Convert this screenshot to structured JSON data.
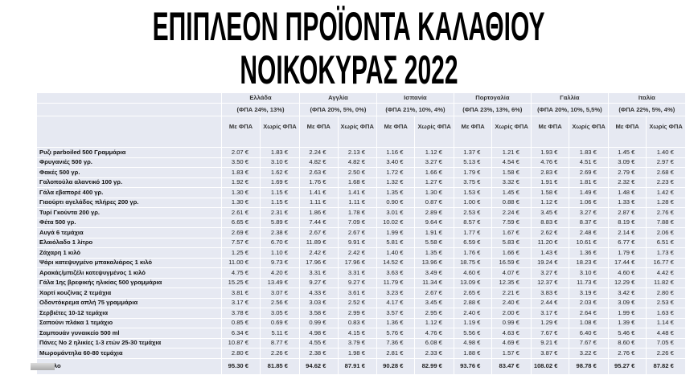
{
  "title": {
    "line1": "ΕΠΙΠΛΕΟΝ ΠΡΟΪΟΝΤΑ ΚΑΛΑΘΙΟΥ",
    "line2": "ΝΟΙΚΟΚΥΡΑΣ 2022"
  },
  "countries": [
    {
      "name": "Ελλάδα",
      "vat": "(ΦΠΑ 24%, 13%)"
    },
    {
      "name": "Αγγλία",
      "vat": "(ΦΠΑ 20%, 5%, 0%)"
    },
    {
      "name": "Ισπανία",
      "vat": "(ΦΠΑ 21%, 10%, 4%)"
    },
    {
      "name": "Πορτογαλία",
      "vat": "(ΦΠΑ 23%, 13%, 6%)"
    },
    {
      "name": "Γαλλία",
      "vat": "(ΦΠΑ 20%, 10%, 5,5%)"
    },
    {
      "name": "Ιταλία",
      "vat": "(ΦΠΑ 22%, 5%, 4%)"
    }
  ],
  "subheaders": {
    "with_vat": "Με ΦΠΑ",
    "without_vat": "Χωρίς ΦΠΑ"
  },
  "rows": [
    {
      "product": "Ρυζι parboiled 500 Γραμμάρια",
      "values": [
        "2.07 €",
        "1.83 €",
        "2.24 €",
        "2.13 €",
        "1.16 €",
        "1.12 €",
        "1.37 €",
        "1.21 €",
        "1.93 €",
        "1.83 €",
        "1.45 €",
        "1.40 €"
      ]
    },
    {
      "product": "Φρυγανιές 500 γρ.",
      "values": [
        "3.50 €",
        "3.10 €",
        "4.82 €",
        "4.82 €",
        "3.40 €",
        "3.27 €",
        "5.13 €",
        "4.54 €",
        "4.76 €",
        "4.51 €",
        "3.09 €",
        "2.97 €"
      ]
    },
    {
      "product": "Φακές 500 γρ.",
      "values": [
        "1.83 €",
        "1.62 €",
        "2.63 €",
        "2.50 €",
        "1.72 €",
        "1.66 €",
        "1.79 €",
        "1.58 €",
        "2.83 €",
        "2.69 €",
        "2.79 €",
        "2.68 €"
      ]
    },
    {
      "product": "Γαλοπούλα αλαντικό 100 γρ.",
      "values": [
        "1.92 €",
        "1.69 €",
        "1.76 €",
        "1.68 €",
        "1.32 €",
        "1.27 €",
        "3.75 €",
        "3.32 €",
        "1.91 €",
        "1.81 €",
        "2.32 €",
        "2.23 €"
      ]
    },
    {
      "product": "Γάλα εβαπορέ 400 γρ.",
      "values": [
        "1.30 €",
        "1.15 €",
        "1.41 €",
        "1.41 €",
        "1.35 €",
        "1.30 €",
        "1.53 €",
        "1.45 €",
        "1.58 €",
        "1.49 €",
        "1.48 €",
        "1.42 €"
      ]
    },
    {
      "product": "Γιαούρτι αγελάδος πλήρες 200 γρ.",
      "values": [
        "1.30 €",
        "1.15 €",
        "1.11 €",
        "1.11 €",
        "0.90 €",
        "0.87 €",
        "1.00 €",
        "0.88 €",
        "1.12 €",
        "1.06 €",
        "1.33 €",
        "1.28 €"
      ]
    },
    {
      "product": "Τυρί Γκούντα 200 γρ.",
      "values": [
        "2.61 €",
        "2.31 €",
        "1.86 €",
        "1.78 €",
        "3.01 €",
        "2.89 €",
        "2.53 €",
        "2.24 €",
        "3.45 €",
        "3.27 €",
        "2.87 €",
        "2.76 €"
      ]
    },
    {
      "product": "Φέτα 500 γρ.",
      "values": [
        "6.65 €",
        "5.89 €",
        "7.44 €",
        "7.09 €",
        "10.02 €",
        "9.64 €",
        "8.57 €",
        "7.59 €",
        "8.83 €",
        "8.37 €",
        "8.19 €",
        "7.88 €"
      ]
    },
    {
      "product": "Αυγά 6 τεμάχια",
      "values": [
        "2.69 €",
        "2.38 €",
        "2.67 €",
        "2.67 €",
        "1.99 €",
        "1.91 €",
        "1.77 €",
        "1.67 €",
        "2.62 €",
        "2.48 €",
        "2.14 €",
        "2.06 €"
      ]
    },
    {
      "product": "Ελαιόλαδο 1 λίτρο",
      "values": [
        "7.57 €",
        "6.70 €",
        "11.89 €",
        "9.91 €",
        "5.81 €",
        "5.58 €",
        "6.59 €",
        "5.83 €",
        "11.20 €",
        "10.61 €",
        "6.77 €",
        "6.51 €"
      ]
    },
    {
      "product": "Ζάχαρη 1 κιλό",
      "values": [
        "1.25 €",
        "1.10 €",
        "2.42 €",
        "2.42 €",
        "1.40 €",
        "1.35 €",
        "1.76 €",
        "1.66 €",
        "1.43 €",
        "1.36 €",
        "1.79 €",
        "1.73 €"
      ]
    },
    {
      "product": "Ψάρι κατεψυγμένο μπακαλιάρος 1 κιλό",
      "values": [
        "11.00 €",
        "9.73 €",
        "17.96 €",
        "17.96 €",
        "14.52 €",
        "13.96 €",
        "18.75 €",
        "16.59 €",
        "19.24 €",
        "18.23 €",
        "17.44 €",
        "16.77 €"
      ]
    },
    {
      "product": "Αρακάς/μπιζέλι κατεψυγμένος 1 κιλό",
      "values": [
        "4.75 €",
        "4.20 €",
        "3.31 €",
        "3.31 €",
        "3.63 €",
        "3.49 €",
        "4.60 €",
        "4.07 €",
        "3.27 €",
        "3.10 €",
        "4.60 €",
        "4.42 €"
      ]
    },
    {
      "product": "Γάλα 1ης βρεφικής ηλικίας 500 γραμμάρια",
      "values": [
        "15.25 €",
        "13.49 €",
        "9.27 €",
        "9.27 €",
        "11.79 €",
        "11.34 €",
        "13.09 €",
        "12.35 €",
        "12.37 €",
        "11.73 €",
        "12.29 €",
        "11.82 €"
      ]
    },
    {
      "product": "Χαρτί κουζίνας 2 τεμάχια",
      "values": [
        "3.81 €",
        "3.07 €",
        "4.33 €",
        "3.61 €",
        "3.23 €",
        "2.67 €",
        "2.65 €",
        "2.21 €",
        "3.83 €",
        "3.19 €",
        "3.42 €",
        "2.80 €"
      ]
    },
    {
      "product": "Οδοντόκρεμα απλή 75 γραμμάρια",
      "values": [
        "3.17 €",
        "2.56 €",
        "3.03 €",
        "2.52 €",
        "4.17 €",
        "3.45 €",
        "2.88 €",
        "2.40 €",
        "2.44 €",
        "2.03 €",
        "3.09 €",
        "2.53 €"
      ]
    },
    {
      "product": "Σερβιέτες 10-12 τεμάχια",
      "values": [
        "3.78 €",
        "3.05 €",
        "3.58 €",
        "2.99 €",
        "3.57 €",
        "2.95 €",
        "2.40 €",
        "2.00 €",
        "3.17 €",
        "2.64 €",
        "1.99 €",
        "1.63 €"
      ]
    },
    {
      "product": "Σαπούνι  πλάκα 1 τεμάχιο",
      "values": [
        "0.85 €",
        "0.69 €",
        "0.99 €",
        "0.83 €",
        "1.36 €",
        "1.12 €",
        "1.19 €",
        "0.99 €",
        "1.29 €",
        "1.08 €",
        "1.39 €",
        "1.14 €"
      ]
    },
    {
      "product": "Σαμπουάν γυναικείο 500 ml",
      "values": [
        "6.34 €",
        "5.11 €",
        "4.98 €",
        "4.15 €",
        "5.76 €",
        "4.76 €",
        "5.56 €",
        "4.63 €",
        "7.67 €",
        "6.40 €",
        "5.46 €",
        "4.48 €"
      ]
    },
    {
      "product": "Πάνες Νο 2 ηλικίες 1-3 ετών 25-30 τεμάχια",
      "values": [
        "10.87 €",
        "8.77 €",
        "4.55 €",
        "3.79 €",
        "7.36 €",
        "6.08 €",
        "4.98 €",
        "4.69 €",
        "9.21 €",
        "7.67 €",
        "8.60 €",
        "7.05 €"
      ]
    },
    {
      "product": "Μωρομάντηλα 60-80 τεμάχια",
      "values": [
        "2.80 €",
        "2.26 €",
        "2.38 €",
        "1.98 €",
        "2.81 €",
        "2.33 €",
        "1.88 €",
        "1.57 €",
        "3.87 €",
        "3.22 €",
        "2.76 €",
        "2.26 €"
      ]
    }
  ],
  "total": {
    "label": "Σύνολο",
    "values": [
      "95.30 €",
      "81.85 €",
      "94.62 €",
      "87.91 €",
      "90.28 €",
      "82.99 €",
      "93.76 €",
      "83.47 €",
      "108.02 €",
      "98.78 €",
      "95.27 €",
      "87.82 €"
    ]
  }
}
